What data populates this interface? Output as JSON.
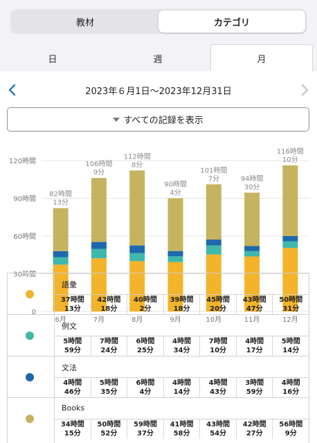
{
  "segmented": {
    "left_label": "教材",
    "right_label": "カテゴリ",
    "selected": "カテゴリ"
  },
  "tabs": [
    {
      "label": "日"
    },
    {
      "label": "週"
    },
    {
      "label": "月",
      "selected": true
    }
  ],
  "nav": {
    "range": "2023年６月1日～2023年12月31日",
    "prev_icon": "chevron-left-icon",
    "next_icon": "chevron-right-icon"
  },
  "show_all": {
    "label": "すべての記録を表示",
    "icon": "triangle-down-icon"
  },
  "colors": {
    "vocab": "#f3b32a",
    "example": "#3eb8a8",
    "grammar": "#1e68ad",
    "books": "#c5b35f",
    "accent": "#2a7ab8"
  },
  "chart_data": {
    "type": "bar",
    "stacked": true,
    "categories": [
      "6月",
      "7月",
      "8月",
      "9月",
      "10月",
      "11月",
      "12月"
    ],
    "y_ticks": [
      "0",
      "30時間",
      "60時間",
      "90時間",
      "120時間"
    ],
    "ylim": [
      0,
      120
    ],
    "series": [
      {
        "name": "語彙",
        "color": "#f3b32a",
        "values": [
          37.22,
          42.3,
          40.03,
          39.3,
          45.33,
          43.78,
          50.52
        ]
      },
      {
        "name": "例文",
        "color": "#3eb8a8",
        "values": [
          5.98,
          7.4,
          6.42,
          4.57,
          7.17,
          4.28,
          5.23
        ]
      },
      {
        "name": "文法",
        "color": "#1e68ad",
        "values": [
          4.77,
          5.58,
          6.07,
          4.23,
          4.72,
          3.98,
          4.27
        ]
      },
      {
        "name": "Books",
        "color": "#c5b35f",
        "values": [
          34.25,
          50.87,
          59.62,
          41.97,
          43.9,
          42.45,
          56.15
        ]
      }
    ],
    "totals": [
      {
        "hours": "82時間",
        "minutes": "13分"
      },
      {
        "hours": "106時間",
        "minutes": "9分"
      },
      {
        "hours": "112時間",
        "minutes": "8分"
      },
      {
        "hours": "90時間",
        "minutes": "4分"
      },
      {
        "hours": "101時間",
        "minutes": "7分"
      },
      {
        "hours": "94時間",
        "minutes": "30分"
      },
      {
        "hours": "116時間",
        "minutes": "10分"
      }
    ],
    "grid": true
  },
  "table": {
    "rows": [
      {
        "name": "語彙",
        "color": "#f3b32a",
        "cells": [
          {
            "h": "37時間",
            "m": "13分"
          },
          {
            "h": "42時間",
            "m": "18分"
          },
          {
            "h": "40時間",
            "m": "2分"
          },
          {
            "h": "39時間",
            "m": "18分"
          },
          {
            "h": "45時間",
            "m": "20分"
          },
          {
            "h": "43時間",
            "m": "47分"
          },
          {
            "h": "50時間",
            "m": "31分"
          }
        ]
      },
      {
        "name": "例文",
        "color": "#3eb8a8",
        "cells": [
          {
            "h": "5時間",
            "m": "59分"
          },
          {
            "h": "7時間",
            "m": "24分"
          },
          {
            "h": "6時間",
            "m": "25分"
          },
          {
            "h": "4時間",
            "m": "34分"
          },
          {
            "h": "7時間",
            "m": "10分"
          },
          {
            "h": "4時間",
            "m": "17分"
          },
          {
            "h": "5時間",
            "m": "14分"
          }
        ]
      },
      {
        "name": "文法",
        "color": "#1e68ad",
        "cells": [
          {
            "h": "4時間",
            "m": "46分"
          },
          {
            "h": "5時間",
            "m": "35分"
          },
          {
            "h": "6時間",
            "m": "4分"
          },
          {
            "h": "4時間",
            "m": "14分"
          },
          {
            "h": "4時間",
            "m": "43分"
          },
          {
            "h": "3時間",
            "m": "59分"
          },
          {
            "h": "4時間",
            "m": "16分"
          }
        ]
      },
      {
        "name": "Books",
        "color": "#c5b35f",
        "cells": [
          {
            "h": "34時間",
            "m": "15分"
          },
          {
            "h": "50時間",
            "m": "52分"
          },
          {
            "h": "59時間",
            "m": "37分"
          },
          {
            "h": "41時間",
            "m": "58分"
          },
          {
            "h": "43時間",
            "m": "54分"
          },
          {
            "h": "42時間",
            "m": "27分"
          },
          {
            "h": "56時間",
            "m": "9分"
          }
        ]
      }
    ]
  }
}
